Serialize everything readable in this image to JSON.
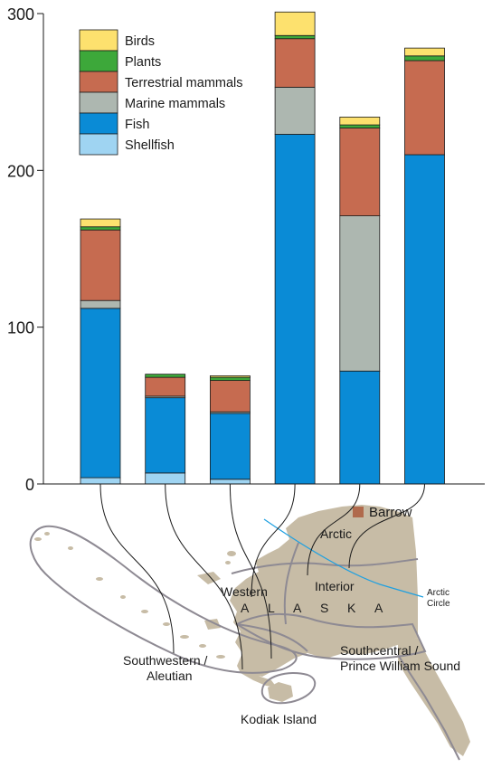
{
  "chart_data": {
    "type": "bar",
    "stacked": true,
    "ylim": [
      0,
      300
    ],
    "yticks": [
      0,
      100,
      200,
      300
    ],
    "grid": false,
    "legend_position": "top-left",
    "categories": [
      "Kodiak Island",
      "Southwestern/Aleutian",
      "Southcentral/Prince William Sound",
      "Western",
      "Arctic",
      "Interior"
    ],
    "series": [
      {
        "name": "Shellfish",
        "color": "#9fd4f2",
        "values": [
          4,
          7,
          3,
          0,
          0,
          0
        ]
      },
      {
        "name": "Fish",
        "color": "#0a8bd6",
        "values": [
          108,
          48,
          42,
          223,
          72,
          210
        ]
      },
      {
        "name": "Marine mammals",
        "color": "#adb7b0",
        "values": [
          5,
          1,
          1,
          30,
          99,
          0
        ]
      },
      {
        "name": "Terrestrial mammals",
        "color": "#c66b50",
        "values": [
          45,
          12,
          20,
          31,
          56,
          60
        ]
      },
      {
        "name": "Plants",
        "color": "#3da83a",
        "values": [
          2,
          2,
          2,
          2,
          2,
          3
        ]
      },
      {
        "name": "Birds",
        "color": "#fde16e",
        "values": [
          5,
          0,
          1,
          15,
          5,
          5
        ]
      }
    ],
    "legend_order": [
      "Birds",
      "Plants",
      "Terrestrial mammals",
      "Marine mammals",
      "Fish",
      "Shellfish"
    ]
  },
  "map": {
    "land_color": "#c7bca6",
    "boundary_color": "#8e8a93",
    "circle_color": "#1fa0e0",
    "barrow_color": "#b06a4c",
    "labels": {
      "barrow": "Barrow",
      "arctic": "Arctic",
      "western": "Western",
      "interior": "Interior",
      "arctic_circle_1": "Arctic",
      "arctic_circle_2": "Circle",
      "alaska_letters": [
        "A",
        "L",
        "A",
        "S",
        "K",
        "A"
      ],
      "southwestern_1": "Southwestern /",
      "southwestern_2": "Aleutian",
      "southcentral_1": "Southcentral /",
      "southcentral_2": "Prince William Sound",
      "kodiak": "Kodiak Island"
    }
  }
}
